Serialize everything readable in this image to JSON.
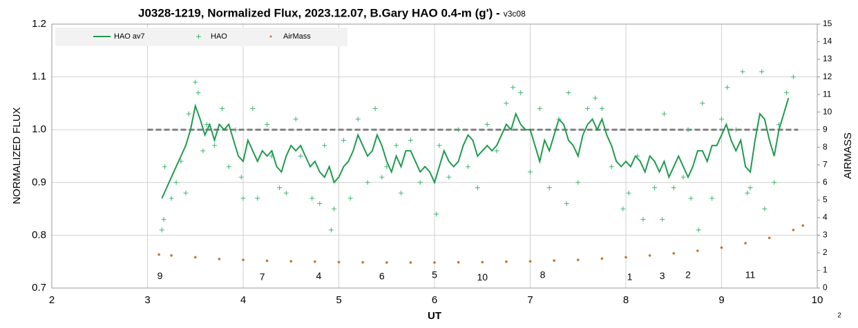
{
  "chart_data": {
    "type": "line",
    "title": "J0328-1219, Normalized Flux, 2023.12.07, B.Gary HAO 0.4-m (g') -",
    "version": "v3c08",
    "x_label": "UT",
    "y_label": "NORMALIZED FLUX",
    "y2_label": "AIRMASS",
    "corner_note": "2",
    "xlim": [
      2,
      10
    ],
    "xticks": [
      2,
      3,
      4,
      5,
      6,
      7,
      8,
      9,
      10
    ],
    "ylim": [
      0.7,
      1.2
    ],
    "yticks": [
      0.7,
      0.8,
      0.9,
      {
        "value": 1,
        "label": "1.0"
      },
      1.1,
      1.2
    ],
    "y2lim": [
      0,
      15
    ],
    "y2ticks": [
      0,
      1,
      2,
      3,
      4,
      5,
      6,
      7,
      8,
      9,
      10,
      11,
      12,
      13,
      14,
      15
    ],
    "grid": true,
    "reference_line": 1.0,
    "legend": "top-left",
    "series": [
      {
        "name": "HAO av7",
        "color": "#1e9a4e",
        "kind": "line",
        "x": [
          3.15,
          3.2,
          3.25,
          3.3,
          3.35,
          3.4,
          3.45,
          3.5,
          3.55,
          3.6,
          3.65,
          3.7,
          3.75,
          3.8,
          3.85,
          3.9,
          3.95,
          4.0,
          4.05,
          4.1,
          4.15,
          4.2,
          4.25,
          4.3,
          4.35,
          4.4,
          4.45,
          4.5,
          4.55,
          4.6,
          4.65,
          4.7,
          4.75,
          4.8,
          4.85,
          4.9,
          4.95,
          5.0,
          5.05,
          5.1,
          5.15,
          5.2,
          5.25,
          5.3,
          5.35,
          5.4,
          5.45,
          5.5,
          5.55,
          5.6,
          5.65,
          5.7,
          5.75,
          5.8,
          5.85,
          5.9,
          5.95,
          6.0,
          6.05,
          6.1,
          6.15,
          6.2,
          6.25,
          6.3,
          6.35,
          6.4,
          6.45,
          6.5,
          6.55,
          6.6,
          6.65,
          6.7,
          6.75,
          6.8,
          6.85,
          6.9,
          6.95,
          7.0,
          7.05,
          7.1,
          7.15,
          7.2,
          7.25,
          7.3,
          7.35,
          7.4,
          7.45,
          7.5,
          7.55,
          7.6,
          7.65,
          7.7,
          7.75,
          7.8,
          7.85,
          7.9,
          7.95,
          8.0,
          8.05,
          8.1,
          8.15,
          8.2,
          8.25,
          8.3,
          8.35,
          8.4,
          8.45,
          8.5,
          8.55,
          8.6,
          8.65,
          8.7,
          8.75,
          8.8,
          8.85,
          8.9,
          8.95,
          9.0,
          9.05,
          9.1,
          9.15,
          9.2,
          9.25,
          9.3,
          9.35,
          9.4,
          9.45,
          9.5,
          9.55,
          9.6,
          9.65,
          9.7
        ],
        "values": [
          0.87,
          0.89,
          0.91,
          0.93,
          0.95,
          0.97,
          1.0,
          1.045,
          1.02,
          0.99,
          1.01,
          0.98,
          1.01,
          1.0,
          1.01,
          0.98,
          0.95,
          0.94,
          0.98,
          0.96,
          0.94,
          0.96,
          0.95,
          0.96,
          0.93,
          0.92,
          0.95,
          0.97,
          0.96,
          0.97,
          0.95,
          0.93,
          0.94,
          0.92,
          0.91,
          0.93,
          0.9,
          0.91,
          0.93,
          0.94,
          0.96,
          0.99,
          0.97,
          0.95,
          0.96,
          0.99,
          0.97,
          0.94,
          0.92,
          0.95,
          0.93,
          0.96,
          0.96,
          0.94,
          0.92,
          0.93,
          0.92,
          0.9,
          0.93,
          0.96,
          0.94,
          0.93,
          0.94,
          0.97,
          0.99,
          0.98,
          0.95,
          0.96,
          0.97,
          0.96,
          0.97,
          0.99,
          1.01,
          1.0,
          1.03,
          1.01,
          1.0,
          1.0,
          0.97,
          0.94,
          0.98,
          0.96,
          0.99,
          1.02,
          1.01,
          0.98,
          0.97,
          0.95,
          0.99,
          1.01,
          1.02,
          1.0,
          1.02,
          0.99,
          0.97,
          0.94,
          0.93,
          0.94,
          0.93,
          0.95,
          0.94,
          0.92,
          0.95,
          0.94,
          0.92,
          0.94,
          0.91,
          0.93,
          0.95,
          0.93,
          0.91,
          0.93,
          0.96,
          0.96,
          0.94,
          0.97,
          0.97,
          0.99,
          1.01,
          0.98,
          0.96,
          0.98,
          0.93,
          0.92,
          0.98,
          1.03,
          1.02,
          0.98,
          0.95,
          1.0,
          1.03,
          1.06
        ]
      },
      {
        "name": "HAO",
        "color": "#3cb371",
        "kind": "scatter",
        "x": [
          3.15,
          3.17,
          3.18,
          3.25,
          3.3,
          3.35,
          3.4,
          3.43,
          3.5,
          3.53,
          3.58,
          3.62,
          3.7,
          3.78,
          3.85,
          3.92,
          3.98,
          4.0,
          4.1,
          4.15,
          4.25,
          4.3,
          4.38,
          4.45,
          4.55,
          4.6,
          4.72,
          4.8,
          4.85,
          4.92,
          4.95,
          5.05,
          5.12,
          5.2,
          5.3,
          5.38,
          5.45,
          5.5,
          5.6,
          5.65,
          5.75,
          5.85,
          6.02,
          6.05,
          6.15,
          6.25,
          6.35,
          6.45,
          6.55,
          6.65,
          6.75,
          6.82,
          6.9,
          7.0,
          7.1,
          7.2,
          7.3,
          7.38,
          7.4,
          7.5,
          7.6,
          7.68,
          7.75,
          7.85,
          7.97,
          8.03,
          8.12,
          8.18,
          8.3,
          8.38,
          8.4,
          8.5,
          8.6,
          8.65,
          8.68,
          8.76,
          8.8,
          8.9,
          9.0,
          9.06,
          9.15,
          9.22,
          9.27,
          9.3,
          9.42,
          9.45,
          9.55,
          9.6,
          9.68,
          9.75
        ],
        "values": [
          0.81,
          0.83,
          0.93,
          0.87,
          0.9,
          0.94,
          0.88,
          1.03,
          1.09,
          1.07,
          0.96,
          1.01,
          0.97,
          1.04,
          0.93,
          1.0,
          0.91,
          0.87,
          1.04,
          0.87,
          1.01,
          0.95,
          0.89,
          0.88,
          1.02,
          0.95,
          0.87,
          0.86,
          0.97,
          0.81,
          0.85,
          0.98,
          0.87,
          1.02,
          0.9,
          1.04,
          0.91,
          0.93,
          0.97,
          0.88,
          0.98,
          0.9,
          0.84,
          0.97,
          0.91,
          1.0,
          0.93,
          0.89,
          1.01,
          0.96,
          1.05,
          1.08,
          1.07,
          0.92,
          1.04,
          0.89,
          1.02,
          0.86,
          1.07,
          0.9,
          1.04,
          1.06,
          1.04,
          0.93,
          0.85,
          0.88,
          0.95,
          0.83,
          0.89,
          0.83,
          1.03,
          0.89,
          0.91,
          1.0,
          0.87,
          0.81,
          1.05,
          0.87,
          1.02,
          1.08,
          1.0,
          1.11,
          0.88,
          0.89,
          1.11,
          0.85,
          0.9,
          1.01,
          1.07,
          1.1
        ]
      },
      {
        "name": "AirMass",
        "color": "#c0772d",
        "kind": "dots",
        "axis": "y2",
        "x": [
          3.12,
          3.25,
          3.5,
          3.75,
          4.0,
          4.25,
          4.5,
          4.75,
          5.0,
          5.25,
          5.5,
          5.75,
          6.0,
          6.25,
          6.5,
          6.75,
          7.0,
          7.25,
          7.5,
          7.75,
          8.0,
          8.25,
          8.5,
          8.75,
          9.0,
          9.25,
          9.5,
          9.75,
          9.85
        ],
        "values": [
          1.9,
          1.85,
          1.75,
          1.65,
          1.6,
          1.55,
          1.52,
          1.5,
          1.47,
          1.46,
          1.45,
          1.45,
          1.45,
          1.46,
          1.47,
          1.5,
          1.52,
          1.56,
          1.6,
          1.67,
          1.75,
          1.85,
          1.97,
          2.12,
          2.3,
          2.55,
          2.85,
          3.3,
          3.55
        ]
      }
    ],
    "annotations": [
      {
        "text": "9",
        "x": 3.13,
        "y": 0.722
      },
      {
        "text": "7",
        "x": 4.2,
        "y": 0.72
      },
      {
        "text": "4",
        "x": 4.79,
        "y": 0.722
      },
      {
        "text": "6",
        "x": 5.45,
        "y": 0.721
      },
      {
        "text": "5",
        "x": 6.0,
        "y": 0.724
      },
      {
        "text": "10",
        "x": 6.5,
        "y": 0.719
      },
      {
        "text": "8",
        "x": 7.13,
        "y": 0.724
      },
      {
        "text": "1",
        "x": 8.04,
        "y": 0.72
      },
      {
        "text": "3",
        "x": 8.38,
        "y": 0.722
      },
      {
        "text": "2",
        "x": 8.65,
        "y": 0.724
      },
      {
        "text": "11",
        "x": 9.3,
        "y": 0.724
      }
    ]
  }
}
